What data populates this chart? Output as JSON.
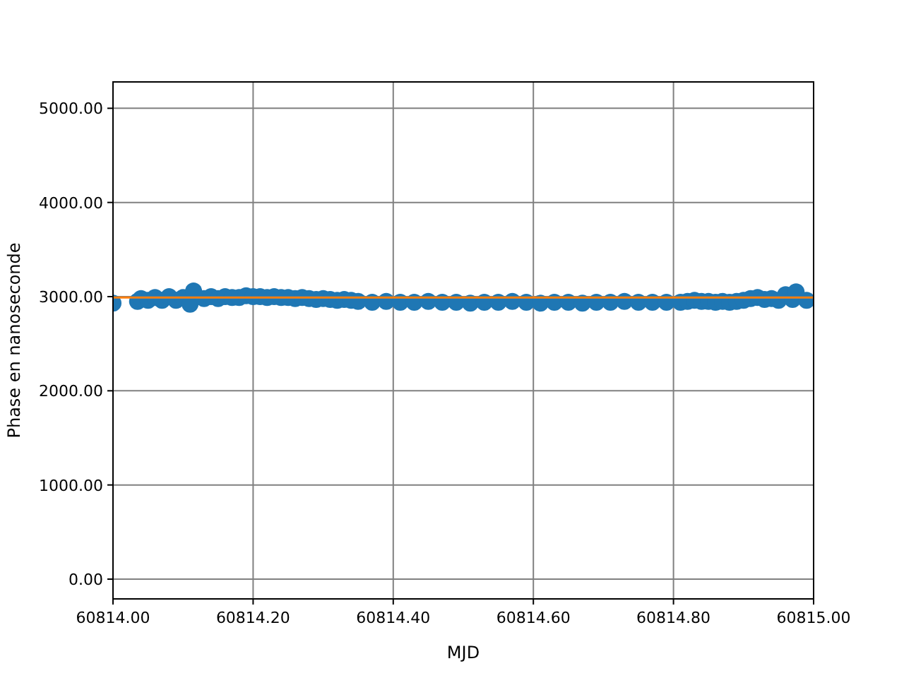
{
  "chart_data": {
    "type": "scatter",
    "xlabel": "MJD",
    "ylabel": "Phase en nanoseconde",
    "xlim": [
      60814.0,
      60815.0
    ],
    "ylim": [
      -210,
      5280
    ],
    "xticks": [
      {
        "value": 60814.0,
        "label": "60814.00"
      },
      {
        "value": 60814.2,
        "label": "60814.20"
      },
      {
        "value": 60814.4,
        "label": "60814.40"
      },
      {
        "value": 60814.6,
        "label": "60814.60"
      },
      {
        "value": 60814.8,
        "label": "60814.80"
      },
      {
        "value": 60815.0,
        "label": "60815.00"
      }
    ],
    "yticks": [
      {
        "value": 0,
        "label": "0.00"
      },
      {
        "value": 1000,
        "label": "1000.00"
      },
      {
        "value": 2000,
        "label": "2000.00"
      },
      {
        "value": 3000,
        "label": "3000.00"
      },
      {
        "value": 4000,
        "label": "4000.00"
      },
      {
        "value": 5000,
        "label": "5000.00"
      }
    ],
    "grid": true,
    "marker": "circle",
    "series": [
      {
        "color": "#1f77b4",
        "x": [
          60814.0,
          60814.035,
          60814.04,
          60814.05,
          60814.06,
          60814.07,
          60814.08,
          60814.09,
          60814.1,
          60814.11,
          60814.115,
          60814.13,
          60814.14,
          60814.15,
          60814.16,
          60814.17,
          60814.18,
          60814.19,
          60814.2,
          60814.21,
          60814.22,
          60814.23,
          60814.24,
          60814.25,
          60814.26,
          60814.27,
          60814.28,
          60814.29,
          60814.3,
          60814.31,
          60814.32,
          60814.33,
          60814.34,
          60814.35,
          60814.37,
          60814.39,
          60814.41,
          60814.43,
          60814.45,
          60814.47,
          60814.49,
          60814.51,
          60814.53,
          60814.55,
          60814.57,
          60814.59,
          60814.61,
          60814.63,
          60814.65,
          60814.67,
          60814.69,
          60814.71,
          60814.73,
          60814.75,
          60814.77,
          60814.79,
          60814.81,
          60814.82,
          60814.83,
          60814.84,
          60814.85,
          60814.86,
          60814.87,
          60814.88,
          60814.89,
          60814.9,
          60814.91,
          60814.92,
          60814.93,
          60814.94,
          60814.95,
          60814.96,
          60814.97,
          60814.975,
          60814.99
        ],
        "values": [
          2930,
          2950,
          2980,
          2960,
          2990,
          2960,
          3000,
          2960,
          2990,
          2920,
          3060,
          2980,
          3000,
          2980,
          3000,
          2990,
          2990,
          3010,
          3000,
          3000,
          2990,
          3000,
          2990,
          2990,
          2980,
          2990,
          2980,
          2970,
          2980,
          2970,
          2960,
          2970,
          2960,
          2950,
          2940,
          2950,
          2940,
          2940,
          2950,
          2940,
          2940,
          2930,
          2940,
          2940,
          2950,
          2940,
          2930,
          2940,
          2940,
          2930,
          2940,
          2940,
          2950,
          2940,
          2940,
          2940,
          2940,
          2950,
          2960,
          2950,
          2950,
          2940,
          2950,
          2940,
          2950,
          2960,
          2980,
          2990,
          2970,
          2980,
          2960,
          3020,
          2970,
          3050,
          2960
        ]
      },
      {
        "type": "line",
        "marker": "none",
        "color": "#ff7f0e",
        "x": [
          60814.0,
          60815.0
        ],
        "values": [
          2990,
          2990
        ]
      }
    ]
  }
}
